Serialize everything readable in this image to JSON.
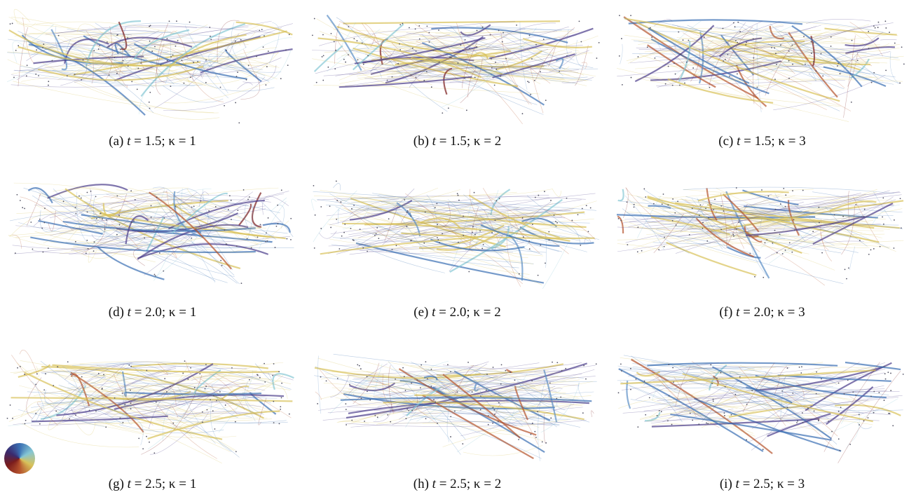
{
  "panels": [
    {
      "label": "(a)",
      "var": "t",
      "rest": "= 1.5; κ = 1"
    },
    {
      "label": "(b)",
      "var": "t",
      "rest": "= 1.5; κ = 2"
    },
    {
      "label": "(c)",
      "var": "t",
      "rest": "= 1.5; κ = 3"
    },
    {
      "label": "(d)",
      "var": "t",
      "rest": "= 2.0; κ = 1"
    },
    {
      "label": "(e)",
      "var": "t",
      "rest": "= 2.0; κ = 2"
    },
    {
      "label": "(f)",
      "var": "t",
      "rest": "= 2.0; κ = 3"
    },
    {
      "label": "(g)",
      "var": "t",
      "rest": "= 2.5; κ = 1"
    },
    {
      "label": "(h)",
      "var": "t",
      "rest": "= 2.5; κ = 2"
    },
    {
      "label": "(i)",
      "var": "t",
      "rest": "= 2.5; κ = 3"
    }
  ]
}
